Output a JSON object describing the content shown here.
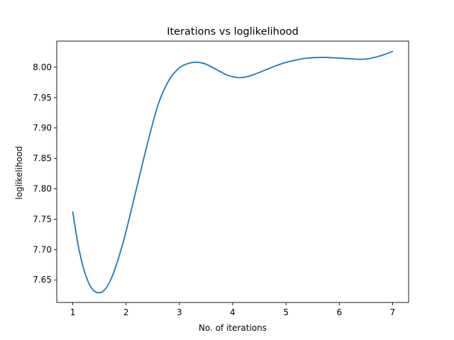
{
  "chart_data": {
    "type": "line",
    "title": "Iterations vs loglikelihood",
    "xlabel": "No. of iterations",
    "ylabel": "loglikelihood",
    "xlim": [
      0.7,
      7.3
    ],
    "ylim": [
      7.613,
      8.043
    ],
    "xticks": [
      1,
      2,
      3,
      4,
      5,
      6,
      7
    ],
    "xtick_labels": [
      "1",
      "2",
      "3",
      "4",
      "5",
      "6",
      "7"
    ],
    "yticks": [
      7.65,
      7.7,
      7.75,
      7.8,
      7.85,
      7.9,
      7.95,
      8.0
    ],
    "ytick_labels": [
      "7.65",
      "7.70",
      "7.75",
      "7.80",
      "7.85",
      "7.90",
      "7.95",
      "8.00"
    ],
    "grid": false,
    "legend": "none",
    "line_color": "#1f77b4",
    "series": [
      {
        "x": [
          1.0,
          1.1,
          1.2,
          1.3,
          1.4,
          1.5,
          1.6,
          1.7,
          1.8,
          1.9,
          2.0,
          2.2,
          2.4,
          2.6,
          2.8,
          3.0,
          3.2,
          3.35,
          3.5,
          3.7,
          3.9,
          4.1,
          4.25,
          4.4,
          4.6,
          4.8,
          5.0,
          5.2,
          5.4,
          5.6,
          5.8,
          6.0,
          6.2,
          6.4,
          6.55,
          6.7,
          6.85,
          7.0
        ],
        "y": [
          7.762,
          7.708,
          7.67,
          7.645,
          7.632,
          7.629,
          7.634,
          7.648,
          7.67,
          7.698,
          7.73,
          7.802,
          7.874,
          7.938,
          7.978,
          7.999,
          8.007,
          8.008,
          8.005,
          7.996,
          7.987,
          7.983,
          7.984,
          7.988,
          7.995,
          8.002,
          8.008,
          8.012,
          8.015,
          8.016,
          8.016,
          8.015,
          8.014,
          8.013,
          8.014,
          8.017,
          8.021,
          8.026
        ]
      }
    ]
  }
}
